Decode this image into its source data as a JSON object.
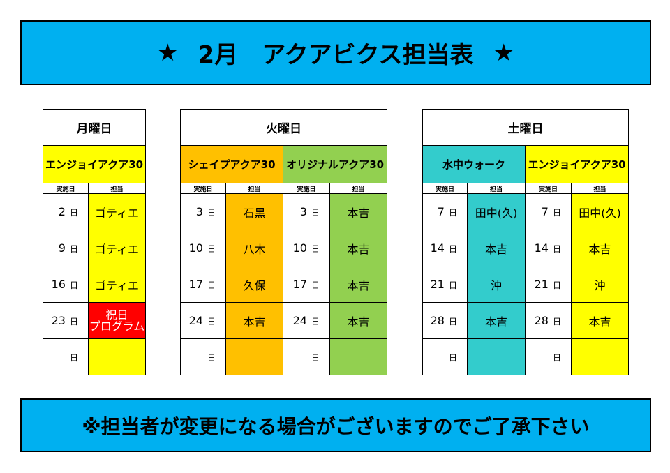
{
  "header": {
    "star_left": "★",
    "title": "2月　アクアビクス担当表",
    "star_right": "★"
  },
  "colors": {
    "banner": "#00b0f0",
    "yellow": "#ffff00",
    "orange": "#ffc000",
    "green": "#92d050",
    "teal": "#33cccc",
    "red": "#ff0000"
  },
  "monday": {
    "day": "月曜日",
    "program": "エンジョイアクア30",
    "col_date": "実施日",
    "col_staff": "担当",
    "rows": [
      {
        "date": "2",
        "unit": "日",
        "staff": "ゴティエ"
      },
      {
        "date": "9",
        "unit": "日",
        "staff": "ゴティエ"
      },
      {
        "date": "16",
        "unit": "日",
        "staff": "ゴティエ"
      },
      {
        "date": "23",
        "unit": "日",
        "staff_line1": "祝日",
        "staff_line2": "プログラム"
      },
      {
        "date": "",
        "unit": "日",
        "staff": ""
      }
    ]
  },
  "tuesday": {
    "day": "火曜日",
    "programs": [
      {
        "name": "シェイプアクア30",
        "col_date": "実施日",
        "col_staff": "担当",
        "rows": [
          {
            "date": "3",
            "unit": "日",
            "staff": "石黒"
          },
          {
            "date": "10",
            "unit": "日",
            "staff": "八木"
          },
          {
            "date": "17",
            "unit": "日",
            "staff": "久保"
          },
          {
            "date": "24",
            "unit": "日",
            "staff": "本吉"
          },
          {
            "date": "",
            "unit": "日",
            "staff": ""
          }
        ]
      },
      {
        "name": "オリジナルアクア30",
        "col_date": "実施日",
        "col_staff": "担当",
        "rows": [
          {
            "date": "3",
            "unit": "日",
            "staff": "本吉"
          },
          {
            "date": "10",
            "unit": "日",
            "staff": "本吉"
          },
          {
            "date": "17",
            "unit": "日",
            "staff": "本吉"
          },
          {
            "date": "24",
            "unit": "日",
            "staff": "本吉"
          },
          {
            "date": "",
            "unit": "日",
            "staff": ""
          }
        ]
      }
    ]
  },
  "saturday": {
    "day": "土曜日",
    "programs": [
      {
        "name": "水中ウォーク",
        "col_date": "実施日",
        "col_staff": "担当",
        "rows": [
          {
            "date": "7",
            "unit": "日",
            "staff": "田中(久)"
          },
          {
            "date": "14",
            "unit": "日",
            "staff": "本吉"
          },
          {
            "date": "21",
            "unit": "日",
            "staff": "沖"
          },
          {
            "date": "28",
            "unit": "日",
            "staff": "本吉"
          },
          {
            "date": "",
            "unit": "日",
            "staff": ""
          }
        ]
      },
      {
        "name": "エンジョイアクア30",
        "col_date": "実施日",
        "col_staff": "担当",
        "rows": [
          {
            "date": "7",
            "unit": "日",
            "staff": "田中(久)"
          },
          {
            "date": "14",
            "unit": "日",
            "staff": "本吉"
          },
          {
            "date": "21",
            "unit": "日",
            "staff": "沖"
          },
          {
            "date": "28",
            "unit": "日",
            "staff": "本吉"
          },
          {
            "date": "",
            "unit": "日",
            "staff": ""
          }
        ]
      }
    ]
  },
  "footer": {
    "notice": "※担当者が変更になる場合がございますのでご了承下さい"
  }
}
